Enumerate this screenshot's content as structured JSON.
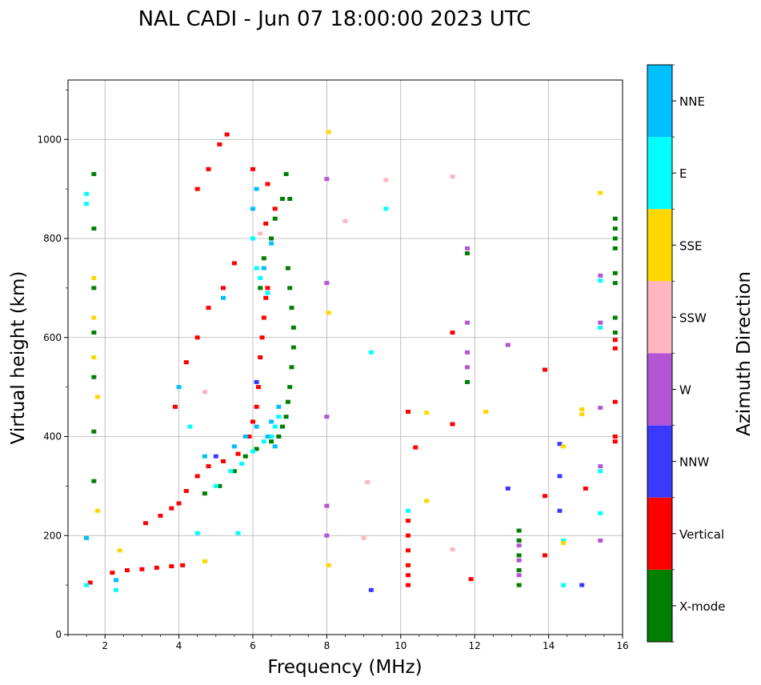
{
  "chart_data": {
    "type": "scatter",
    "title": "NAL CADI - Jun 07 18:00:00 2023 UTC",
    "xlabel": "Frequency (MHz)",
    "ylabel": "Virtual height (km)",
    "xlim": [
      1,
      16
    ],
    "ylim": [
      0,
      1120
    ],
    "xticks": [
      2,
      4,
      6,
      8,
      10,
      12,
      14,
      16
    ],
    "yticks": [
      0,
      200,
      400,
      600,
      800,
      1000
    ],
    "grid": true,
    "colorbar": {
      "label": "Azimuth Direction",
      "categories": [
        {
          "name": "X-mode",
          "color": "#008000"
        },
        {
          "name": "Vertical",
          "color": "#ff0000"
        },
        {
          "name": "NNW",
          "color": "#3a3aff"
        },
        {
          "name": "W",
          "color": "#b455d6"
        },
        {
          "name": "SSW",
          "color": "#ffb6c1"
        },
        {
          "name": "SSE",
          "color": "#ffd700"
        },
        {
          "name": "E",
          "color": "#00ffff"
        },
        {
          "name": "NNE",
          "color": "#00bfff"
        }
      ]
    },
    "traces": [
      {
        "name": "Vertical",
        "color": "#ff0000",
        "points": [
          [
            1.6,
            105
          ],
          [
            2.2,
            125
          ],
          [
            2.6,
            130
          ],
          [
            3.0,
            132
          ],
          [
            3.4,
            135
          ],
          [
            3.8,
            138
          ],
          [
            4.1,
            140
          ],
          [
            3.1,
            225
          ],
          [
            3.5,
            240
          ],
          [
            3.8,
            255
          ],
          [
            4.0,
            265
          ],
          [
            4.2,
            290
          ],
          [
            4.5,
            320
          ],
          [
            4.8,
            340
          ],
          [
            5.2,
            350
          ],
          [
            5.6,
            365
          ],
          [
            5.9,
            400
          ],
          [
            6.0,
            430
          ],
          [
            6.1,
            460
          ],
          [
            6.15,
            500
          ],
          [
            6.2,
            560
          ],
          [
            6.25,
            600
          ],
          [
            6.3,
            640
          ],
          [
            6.35,
            680
          ],
          [
            6.4,
            700
          ],
          [
            3.9,
            460
          ],
          [
            4.2,
            550
          ],
          [
            4.5,
            600
          ],
          [
            4.8,
            660
          ],
          [
            5.2,
            700
          ],
          [
            5.5,
            750
          ],
          [
            4.5,
            900
          ],
          [
            4.8,
            940
          ],
          [
            5.1,
            990
          ],
          [
            5.3,
            1010
          ],
          [
            6.0,
            940
          ],
          [
            6.4,
            910
          ],
          [
            6.6,
            860
          ],
          [
            6.35,
            830
          ],
          [
            10.2,
            100
          ],
          [
            10.2,
            120
          ],
          [
            10.2,
            140
          ],
          [
            10.2,
            170
          ],
          [
            10.2,
            200
          ],
          [
            10.2,
            230
          ],
          [
            10.2,
            450
          ],
          [
            10.4,
            378
          ],
          [
            11.4,
            425
          ],
          [
            11.4,
            610
          ],
          [
            11.9,
            112
          ],
          [
            13.9,
            160
          ],
          [
            13.9,
            280
          ],
          [
            13.9,
            535
          ],
          [
            15.0,
            295
          ],
          [
            15.8,
            390
          ],
          [
            15.8,
            400
          ],
          [
            15.8,
            470
          ],
          [
            15.8,
            578
          ],
          [
            15.8,
            595
          ]
        ]
      },
      {
        "name": "X-mode",
        "color": "#008000",
        "points": [
          [
            1.7,
            310
          ],
          [
            1.7,
            410
          ],
          [
            1.7,
            520
          ],
          [
            1.7,
            610
          ],
          [
            1.7,
            700
          ],
          [
            1.7,
            820
          ],
          [
            1.7,
            930
          ],
          [
            4.7,
            285
          ],
          [
            5.1,
            300
          ],
          [
            5.5,
            330
          ],
          [
            5.8,
            360
          ],
          [
            6.1,
            375
          ],
          [
            6.5,
            390
          ],
          [
            6.7,
            400
          ],
          [
            6.8,
            420
          ],
          [
            6.9,
            440
          ],
          [
            6.95,
            470
          ],
          [
            7.0,
            500
          ],
          [
            7.05,
            540
          ],
          [
            7.1,
            580
          ],
          [
            7.1,
            620
          ],
          [
            7.05,
            660
          ],
          [
            7.0,
            700
          ],
          [
            6.95,
            740
          ],
          [
            6.2,
            700
          ],
          [
            6.3,
            760
          ],
          [
            6.5,
            800
          ],
          [
            6.6,
            840
          ],
          [
            6.8,
            880
          ],
          [
            7.0,
            880
          ],
          [
            6.9,
            930
          ],
          [
            13.2,
            100
          ],
          [
            13.2,
            130
          ],
          [
            13.2,
            160
          ],
          [
            13.2,
            190
          ],
          [
            13.2,
            210
          ],
          [
            11.8,
            510
          ],
          [
            11.8,
            770
          ],
          [
            15.8,
            610
          ],
          [
            15.8,
            640
          ],
          [
            15.8,
            710
          ],
          [
            15.8,
            730
          ],
          [
            15.8,
            780
          ],
          [
            15.8,
            800
          ],
          [
            15.8,
            820
          ],
          [
            15.8,
            840
          ]
        ]
      },
      {
        "name": "E",
        "color": "#00ffff",
        "points": [
          [
            1.5,
            100
          ],
          [
            2.3,
            90
          ],
          [
            1.5,
            870
          ],
          [
            1.5,
            890
          ],
          [
            5.0,
            300
          ],
          [
            5.4,
            330
          ],
          [
            5.7,
            345
          ],
          [
            6.0,
            370
          ],
          [
            6.3,
            390
          ],
          [
            6.5,
            400
          ],
          [
            6.6,
            420
          ],
          [
            6.7,
            440
          ],
          [
            6.1,
            740
          ],
          [
            6.0,
            800
          ],
          [
            6.2,
            720
          ],
          [
            6.4,
            690
          ],
          [
            4.3,
            420
          ],
          [
            4.5,
            205
          ],
          [
            5.6,
            205
          ],
          [
            10.2,
            250
          ],
          [
            9.2,
            570
          ],
          [
            9.6,
            860
          ],
          [
            14.4,
            100
          ],
          [
            14.4,
            190
          ],
          [
            15.4,
            245
          ],
          [
            15.4,
            330
          ],
          [
            15.4,
            620
          ],
          [
            15.4,
            715
          ]
        ]
      },
      {
        "name": "NNE",
        "color": "#00bfff",
        "points": [
          [
            1.5,
            195
          ],
          [
            2.3,
            110
          ],
          [
            4.0,
            500
          ],
          [
            4.7,
            360
          ],
          [
            5.2,
            680
          ],
          [
            5.5,
            380
          ],
          [
            5.8,
            400
          ],
          [
            6.1,
            420
          ],
          [
            6.4,
            400
          ],
          [
            6.5,
            430
          ],
          [
            6.6,
            380
          ],
          [
            6.7,
            460
          ],
          [
            6.3,
            740
          ],
          [
            6.5,
            790
          ],
          [
            6.0,
            860
          ],
          [
            6.1,
            900
          ]
        ]
      },
      {
        "name": "NNW",
        "color": "#3a3aff",
        "points": [
          [
            5.0,
            360
          ],
          [
            6.1,
            510
          ],
          [
            9.2,
            90
          ],
          [
            12.9,
            295
          ],
          [
            14.3,
            250
          ],
          [
            14.3,
            320
          ],
          [
            14.3,
            385
          ],
          [
            14.9,
            100
          ]
        ]
      },
      {
        "name": "W",
        "color": "#b455d6",
        "points": [
          [
            8.0,
            200
          ],
          [
            8.0,
            260
          ],
          [
            8.0,
            440
          ],
          [
            8.0,
            710
          ],
          [
            8.0,
            920
          ],
          [
            11.8,
            540
          ],
          [
            11.8,
            570
          ],
          [
            11.8,
            630
          ],
          [
            11.8,
            780
          ],
          [
            12.9,
            585
          ],
          [
            15.4,
            190
          ],
          [
            15.4,
            340
          ],
          [
            15.4,
            458
          ],
          [
            15.4,
            630
          ],
          [
            15.4,
            725
          ],
          [
            13.2,
            120
          ],
          [
            13.2,
            150
          ],
          [
            13.2,
            180
          ]
        ]
      },
      {
        "name": "SSW",
        "color": "#ffb6c1",
        "points": [
          [
            4.7,
            490
          ],
          [
            8.5,
            835
          ],
          [
            9.0,
            195
          ],
          [
            9.1,
            308
          ],
          [
            9.6,
            918
          ],
          [
            11.4,
            172
          ],
          [
            11.4,
            925
          ],
          [
            6.2,
            810
          ]
        ]
      },
      {
        "name": "SSE",
        "color": "#ffd700",
        "points": [
          [
            1.8,
            250
          ],
          [
            1.8,
            480
          ],
          [
            1.7,
            560
          ],
          [
            1.7,
            640
          ],
          [
            1.7,
            720
          ],
          [
            2.4,
            170
          ],
          [
            4.7,
            148
          ],
          [
            8.05,
            140
          ],
          [
            8.05,
            650
          ],
          [
            8.05,
            1015
          ],
          [
            10.7,
            270
          ],
          [
            10.7,
            448
          ],
          [
            12.3,
            450
          ],
          [
            14.4,
            185
          ],
          [
            14.4,
            380
          ],
          [
            14.9,
            445
          ],
          [
            14.9,
            455
          ],
          [
            15.4,
            892
          ]
        ]
      }
    ]
  }
}
